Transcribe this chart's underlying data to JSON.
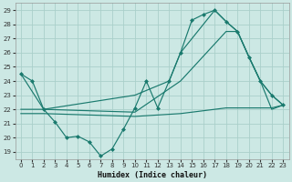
{
  "xlabel": "Humidex (Indice chaleur)",
  "bg_color": "#cce8e4",
  "grid_color": "#aacfca",
  "line_color": "#1a7a6e",
  "xlim": [
    -0.5,
    23.5
  ],
  "ylim": [
    18.5,
    29.5
  ],
  "xticks": [
    0,
    1,
    2,
    3,
    4,
    5,
    6,
    7,
    8,
    9,
    10,
    11,
    12,
    13,
    14,
    15,
    16,
    17,
    18,
    19,
    20,
    21,
    22,
    23
  ],
  "yticks": [
    19,
    20,
    21,
    22,
    23,
    24,
    25,
    26,
    27,
    28,
    29
  ],
  "series": [
    {
      "x": [
        0,
        1,
        2,
        3,
        4,
        5,
        6,
        7,
        8,
        9,
        10,
        11,
        12,
        13,
        14,
        15,
        16,
        17,
        18,
        19,
        20,
        21,
        22,
        23
      ],
      "y": [
        24.5,
        24.0,
        22.0,
        21.1,
        20.0,
        20.1,
        19.7,
        18.7,
        19.2,
        20.6,
        22.1,
        24.0,
        22.1,
        24.0,
        26.0,
        28.3,
        28.7,
        29.0,
        28.2,
        27.5,
        25.7,
        24.0,
        23.0,
        22.3
      ],
      "marker": "D",
      "markersize": 2.0
    },
    {
      "x": [
        0,
        2,
        10,
        13,
        14,
        17,
        18,
        19,
        20,
        21,
        22,
        23
      ],
      "y": [
        24.5,
        22.0,
        23.0,
        24.0,
        26.0,
        29.0,
        28.2,
        27.5,
        25.7,
        24.0,
        23.0,
        22.3
      ],
      "marker": null
    },
    {
      "x": [
        0,
        2,
        10,
        14,
        18,
        19,
        20,
        21,
        22,
        23
      ],
      "y": [
        22.0,
        22.0,
        21.8,
        24.0,
        27.5,
        27.5,
        25.7,
        24.0,
        22.0,
        22.3
      ],
      "marker": null
    },
    {
      "x": [
        0,
        2,
        10,
        14,
        18,
        19,
        20,
        21,
        22,
        23
      ],
      "y": [
        21.7,
        21.7,
        21.5,
        21.7,
        22.1,
        22.1,
        22.1,
        22.1,
        22.1,
        22.3
      ],
      "marker": null
    }
  ]
}
